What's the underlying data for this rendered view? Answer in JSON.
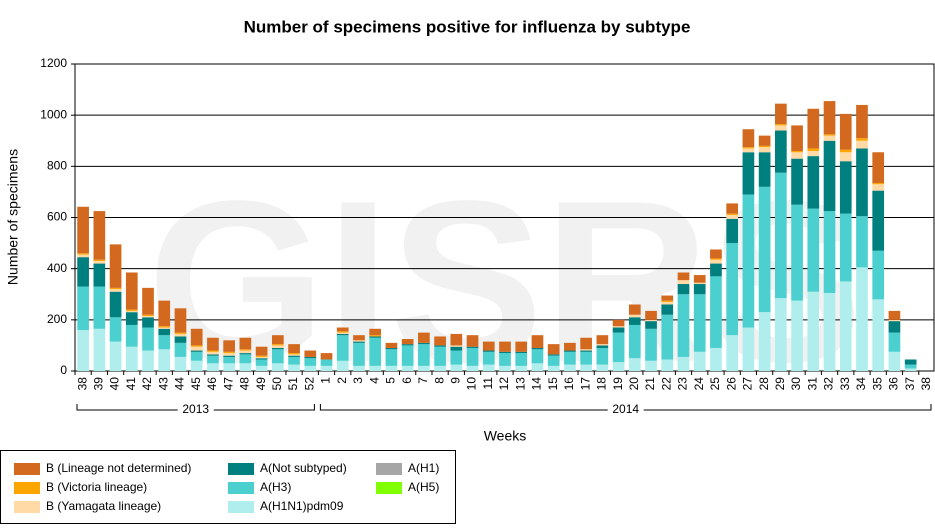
{
  "chart_data": {
    "type": "stacked_bar",
    "title": "Number of specimens positive for influenza by subtype",
    "watermark": "GISRS",
    "y_label": "Number of specimens",
    "x_label": "Weeks",
    "ylim": [
      0,
      1200
    ],
    "yticks": [
      0,
      200,
      400,
      600,
      800,
      1000,
      1200
    ],
    "grid": true,
    "categories": [
      "38",
      "39",
      "40",
      "41",
      "42",
      "43",
      "44",
      "45",
      "46",
      "47",
      "48",
      "49",
      "50",
      "51",
      "52",
      "1",
      "2",
      "3",
      "4",
      "5",
      "6",
      "7",
      "8",
      "9",
      "10",
      "11",
      "12",
      "13",
      "14",
      "15",
      "16",
      "17",
      "18",
      "19",
      "20",
      "21",
      "22",
      "23",
      "24",
      "25",
      "26",
      "27",
      "28",
      "29",
      "30",
      "31",
      "32",
      "33",
      "34",
      "35",
      "36",
      "37",
      "38"
    ],
    "groups": [
      {
        "label": "2013",
        "count": 15
      },
      {
        "label": "2014",
        "count": 38
      }
    ],
    "series": [
      {
        "name": "A(H1N1)pdm09",
        "color": "#b0eeee",
        "values": [
          160,
          165,
          115,
          95,
          80,
          85,
          55,
          40,
          30,
          30,
          30,
          20,
          30,
          25,
          20,
          20,
          40,
          20,
          20,
          20,
          20,
          20,
          20,
          25,
          20,
          25,
          20,
          20,
          30,
          20,
          25,
          25,
          25,
          35,
          50,
          40,
          45,
          55,
          75,
          90,
          140,
          170,
          230,
          285,
          275,
          310,
          305,
          350,
          405,
          280,
          75,
          10,
          0
        ]
      },
      {
        "name": "A(H3)",
        "color": "#4ccfcf",
        "values": [
          170,
          165,
          95,
          85,
          90,
          55,
          55,
          35,
          30,
          25,
          35,
          25,
          55,
          30,
          30,
          25,
          100,
          90,
          110,
          65,
          80,
          85,
          75,
          55,
          70,
          50,
          50,
          50,
          55,
          40,
          50,
          50,
          65,
          115,
          130,
          125,
          175,
          245,
          225,
          280,
          360,
          520,
          490,
          490,
          375,
          325,
          320,
          265,
          200,
          190,
          75,
          15,
          0
        ]
      },
      {
        "name": "A(Not subtyped)",
        "color": "#007f7f",
        "values": [
          115,
          90,
          100,
          50,
          40,
          25,
          25,
          5,
          5,
          5,
          5,
          5,
          5,
          5,
          5,
          0,
          5,
          5,
          5,
          5,
          5,
          5,
          5,
          15,
          5,
          5,
          5,
          5,
          5,
          5,
          5,
          5,
          10,
          20,
          30,
          30,
          40,
          40,
          40,
          50,
          95,
          165,
          135,
          165,
          180,
          205,
          275,
          205,
          265,
          235,
          45,
          20,
          0
        ]
      },
      {
        "name": "A(H1)",
        "color": "#a6a6a6",
        "values": [
          0,
          0,
          0,
          0,
          0,
          0,
          0,
          0,
          0,
          0,
          0,
          0,
          0,
          0,
          0,
          0,
          0,
          0,
          0,
          0,
          0,
          0,
          0,
          0,
          0,
          0,
          0,
          0,
          0,
          0,
          0,
          0,
          0,
          0,
          0,
          0,
          0,
          0,
          0,
          0,
          0,
          0,
          0,
          0,
          0,
          0,
          0,
          0,
          0,
          0,
          0,
          0,
          0
        ]
      },
      {
        "name": "A(H5)",
        "color": "#80ff00",
        "values": [
          0,
          0,
          0,
          0,
          0,
          0,
          0,
          0,
          0,
          0,
          0,
          0,
          0,
          0,
          0,
          0,
          0,
          0,
          0,
          0,
          0,
          0,
          0,
          0,
          0,
          0,
          0,
          0,
          0,
          0,
          0,
          0,
          0,
          0,
          0,
          0,
          0,
          0,
          0,
          0,
          0,
          0,
          0,
          0,
          0,
          0,
          0,
          0,
          0,
          0,
          0,
          0,
          0
        ]
      },
      {
        "name": "B (Yamagata lineage)",
        "color": "#ffd9a6",
        "values": [
          10,
          10,
          10,
          5,
          5,
          5,
          10,
          15,
          10,
          10,
          10,
          5,
          10,
          5,
          0,
          0,
          5,
          5,
          0,
          0,
          0,
          0,
          0,
          5,
          0,
          0,
          0,
          0,
          0,
          0,
          0,
          5,
          5,
          5,
          10,
          5,
          10,
          15,
          5,
          15,
          15,
          15,
          20,
          20,
          25,
          20,
          20,
          35,
          30,
          25,
          5,
          0,
          0
        ]
      },
      {
        "name": "B (Victoria lineage)",
        "color": "#ffa500",
        "values": [
          5,
          5,
          5,
          5,
          5,
          5,
          5,
          5,
          5,
          5,
          5,
          5,
          5,
          5,
          0,
          0,
          5,
          0,
          5,
          0,
          0,
          0,
          0,
          0,
          0,
          0,
          0,
          0,
          0,
          0,
          0,
          0,
          0,
          0,
          0,
          0,
          5,
          0,
          0,
          5,
          5,
          5,
          5,
          5,
          5,
          10,
          5,
          10,
          10,
          5,
          0,
          0,
          0
        ]
      },
      {
        "name": "B (Lineage not determined)",
        "color": "#d2691e",
        "values": [
          182,
          190,
          170,
          145,
          105,
          100,
          95,
          65,
          50,
          45,
          45,
          35,
          35,
          35,
          25,
          25,
          15,
          20,
          25,
          20,
          20,
          40,
          35,
          45,
          45,
          35,
          40,
          40,
          50,
          40,
          30,
          45,
          35,
          25,
          40,
          35,
          20,
          30,
          30,
          35,
          40,
          70,
          40,
          80,
          100,
          155,
          130,
          140,
          130,
          120,
          35,
          0,
          0
        ]
      }
    ]
  }
}
